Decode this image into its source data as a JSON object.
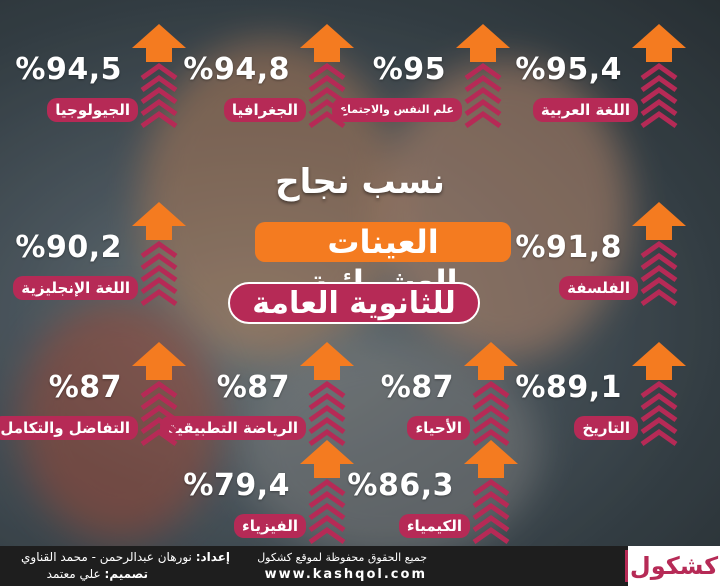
{
  "heading": {
    "line1": "نسب نجاح",
    "line2": "العينات العشوائية",
    "line3": "للثانوية العامة"
  },
  "stats": [
    {
      "label": "اللغة العربية",
      "value": "%95,4"
    },
    {
      "label": "علم النفس والاجتماع",
      "value": "%95"
    },
    {
      "label": "الجغرافيا",
      "value": "%94,8"
    },
    {
      "label": "الجيولوجيا",
      "value": "%94,5"
    },
    {
      "label": "الفلسفة",
      "value": "%91,8"
    },
    {
      "label": "اللغة الإنجليزية",
      "value": "%90,2"
    },
    {
      "label": "التاريخ",
      "value": "%89,1"
    },
    {
      "label": "الأحياء",
      "value": "%87"
    },
    {
      "label": "الرياضة التطبيقية",
      "value": "%87"
    },
    {
      "label": "التفاضل والتكامل",
      "value": "%87"
    },
    {
      "label": "الكيمياء",
      "value": "%86,3"
    },
    {
      "label": "الفيزياء",
      "value": "%79,4"
    }
  ],
  "footer": {
    "logo": "كشكول",
    "rights": "جميع الحقوق محفوظة لموقع كشكول",
    "site": "www.kashqol.com",
    "prepared_label": "إعداد:",
    "prepared_by": "نورهان عبدالرحمن - محمد القناوي",
    "design_label": "تصميم:",
    "design_by": "علي معتمد"
  },
  "colors": {
    "arrow": "#f47b20",
    "label_bg": "#b62a56",
    "title_orange": "#f47b20",
    "footer_bg": "#1e1e1e"
  },
  "icons": [
    "up-arrow-icon",
    "chevron-up-icon"
  ]
}
